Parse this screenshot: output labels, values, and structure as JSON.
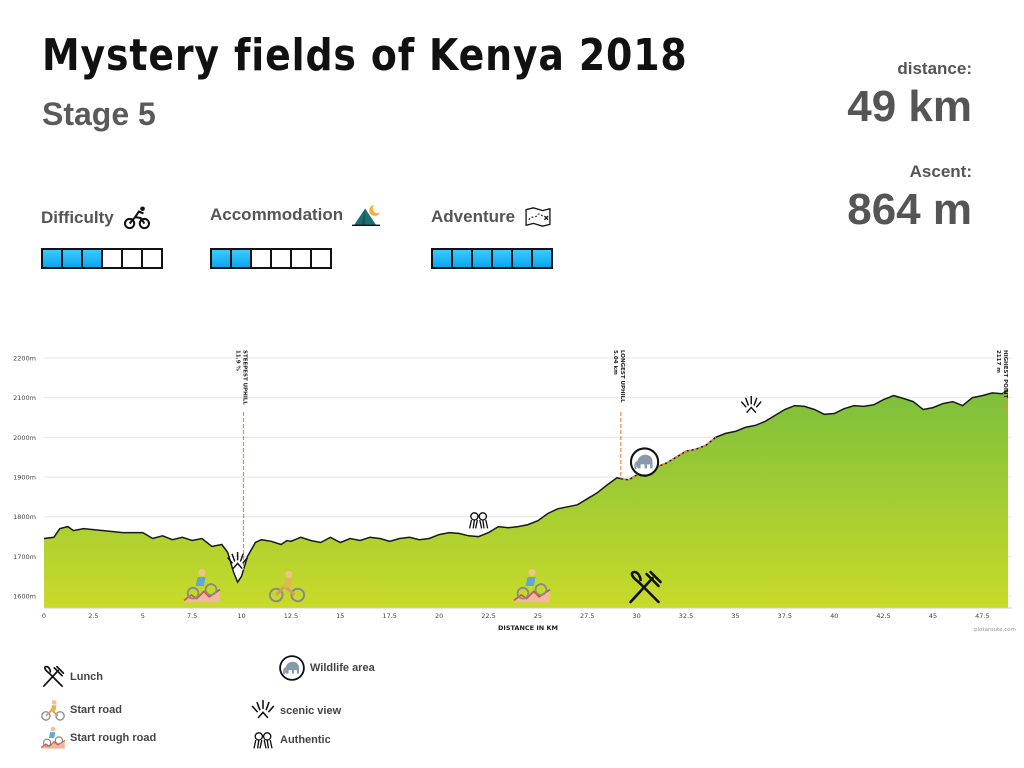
{
  "header": {
    "title": "Mystery fields of Kenya 2018",
    "subtitle": "Stage 5"
  },
  "stats": {
    "distance_label": "distance:",
    "distance_value": "49 km",
    "ascent_label": "Ascent:",
    "ascent_value": "864 m"
  },
  "ratings": [
    {
      "label": "Difficulty",
      "icon": "cyclist-icon",
      "level": 3,
      "max": 6
    },
    {
      "label": "Accommodation",
      "icon": "tent-icon",
      "level": 2,
      "max": 6
    },
    {
      "label": "Adventure",
      "icon": "map-icon",
      "level": 6,
      "max": 6
    }
  ],
  "legend": {
    "lunch": "Lunch",
    "start_road": "Start road",
    "start_rough_road": "Start rough road",
    "wildlife": "Wildlife area",
    "scenic": "scenic view",
    "authentic": "Authentic"
  },
  "chart_data": {
    "type": "area",
    "xlabel": "DISTANCE IN KM",
    "ylabel": "",
    "xlim": [
      0,
      49
    ],
    "ylim": [
      1570,
      2220
    ],
    "x_ticks": [
      0,
      2.5,
      5,
      7.5,
      10,
      12.5,
      15,
      17.5,
      20,
      22.5,
      25,
      27.5,
      30,
      32.5,
      35,
      37.5,
      40,
      42.5,
      45,
      47.5
    ],
    "x_tick_labels": [
      "0",
      "2.5",
      "5",
      "7.5",
      "10",
      "12.5",
      "15",
      "17.5",
      "20",
      "22.5",
      "25",
      "27.5",
      "30",
      "32.5",
      "35",
      "37.5",
      "40",
      "42.5",
      "45",
      "47.5"
    ],
    "y_ticks": [
      1600,
      1700,
      1800,
      1900,
      2000,
      2100,
      2200
    ],
    "y_tick_labels": [
      "1600m",
      "1700m",
      "1800m",
      "1900m",
      "2000m",
      "2100m",
      "2200m"
    ],
    "grid": true,
    "credit": "plotaroute.com",
    "fill_colors": [
      "#8cc63f",
      "#c8d92b"
    ],
    "highlight_color": "#f08a3c",
    "profile": {
      "x": [
        0,
        0.5,
        0.8,
        1.2,
        1.5,
        2.0,
        3.0,
        4.0,
        5.0,
        5.5,
        6.0,
        6.5,
        7.0,
        7.5,
        8.0,
        8.5,
        9.0,
        9.3,
        9.6,
        9.8,
        10.0,
        10.3,
        10.7,
        11.0,
        11.5,
        12.0,
        12.3,
        12.5,
        13.0,
        13.5,
        14.0,
        14.5,
        15.0,
        15.5,
        16.0,
        16.5,
        17.0,
        17.5,
        18.0,
        18.5,
        19.0,
        19.5,
        20.0,
        20.5,
        21.0,
        21.5,
        22.0,
        22.5,
        23.0,
        23.5,
        24.0,
        24.5,
        25.0,
        25.5,
        26.0,
        26.5,
        27.0,
        27.5,
        28.0,
        28.5,
        29.0,
        29.3,
        29.6,
        30.0,
        30.5,
        31.0,
        31.5,
        32.0,
        32.5,
        33.0,
        33.5,
        34.0,
        34.5,
        35.0,
        35.5,
        36.0,
        36.5,
        37.0,
        37.5,
        38.0,
        38.5,
        39.0,
        39.5,
        40.0,
        40.5,
        41.0,
        41.5,
        42.0,
        42.5,
        43.0,
        43.5,
        44.0,
        44.5,
        45.0,
        45.5,
        46.0,
        46.5,
        47.0,
        47.5,
        48.0,
        48.5,
        48.8
      ],
      "y": [
        1745,
        1748,
        1770,
        1775,
        1765,
        1770,
        1765,
        1760,
        1760,
        1745,
        1752,
        1742,
        1748,
        1740,
        1745,
        1725,
        1730,
        1710,
        1660,
        1635,
        1650,
        1700,
        1735,
        1742,
        1738,
        1730,
        1740,
        1738,
        1748,
        1740,
        1735,
        1748,
        1735,
        1745,
        1740,
        1748,
        1745,
        1738,
        1745,
        1748,
        1742,
        1745,
        1755,
        1760,
        1758,
        1752,
        1750,
        1760,
        1775,
        1772,
        1775,
        1780,
        1790,
        1808,
        1820,
        1825,
        1830,
        1845,
        1860,
        1880,
        1898,
        1895,
        1893,
        1905,
        1902,
        1925,
        1935,
        1950,
        1965,
        1970,
        1980,
        2000,
        2010,
        2015,
        2025,
        2030,
        2040,
        2055,
        2070,
        2080,
        2078,
        2070,
        2058,
        2060,
        2072,
        2080,
        2078,
        2082,
        2095,
        2105,
        2098,
        2090,
        2070,
        2075,
        2085,
        2090,
        2080,
        2100,
        2105,
        2112,
        2110,
        2120
      ]
    },
    "highlights": [
      {
        "type": "uphill",
        "x_range": [
          29.3,
          34.0
        ]
      }
    ],
    "markers": [
      {
        "x": 10.1,
        "label": "STEEPEST UPHILL",
        "sublabel": "11.9 %"
      },
      {
        "x": 29.2,
        "label": "LONGEST UPHILL",
        "sublabel": "5.04 km"
      },
      {
        "x": 48.6,
        "label": "HIGHEST POINT",
        "sublabel": "2117 m"
      }
    ],
    "pois": [
      {
        "x": 8.0,
        "icon": "start-rough-road-icon"
      },
      {
        "x": 9.8,
        "icon": "scenic-view-icon"
      },
      {
        "x": 12.3,
        "icon": "start-road-icon"
      },
      {
        "x": 22.0,
        "icon": "authentic-icon"
      },
      {
        "x": 24.7,
        "icon": "start-rough-road-icon"
      },
      {
        "x": 30.4,
        "icon": "wildlife-icon"
      },
      {
        "x": 30.4,
        "icon": "lunch-icon"
      },
      {
        "x": 35.8,
        "icon": "scenic-view-icon"
      }
    ]
  }
}
